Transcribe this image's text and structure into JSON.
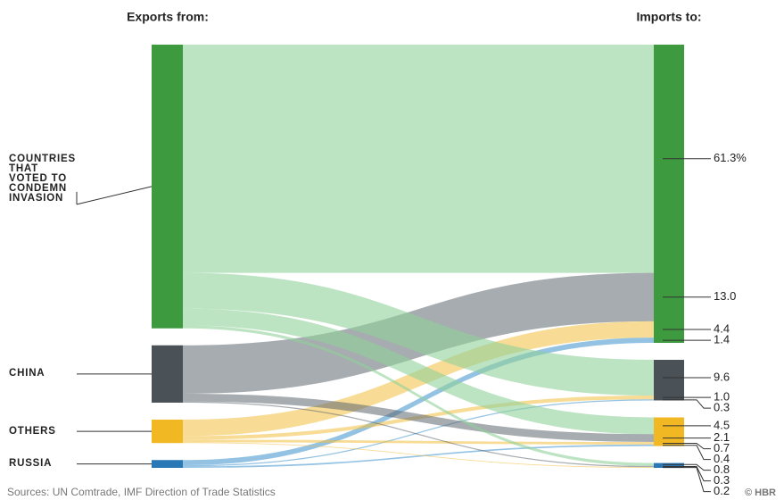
{
  "chart_data": {
    "type": "sankey",
    "left_header": "Exports from:",
    "right_header": "Imports to:",
    "source_note": "Sources: UN Comtrade, IMF Direction of Trade Statistics",
    "credit": "© HBR",
    "nodes": [
      {
        "name": "COUNTRIES THAT VOTED TO CONDEMN INVASION",
        "color": "#3d9a3f",
        "flow_color": "#8fd09a"
      },
      {
        "name": "CHINA",
        "color": "#4a5257",
        "flow_color": "#5f6870"
      },
      {
        "name": "OTHERS",
        "color": "#f2b823",
        "flow_color": "#f2c040"
      },
      {
        "name": "RUSSIA",
        "color": "#2a78b5",
        "flow_color": "#3b8fcc"
      }
    ],
    "links": [
      {
        "source": 0,
        "target": 0,
        "value": 61.3,
        "value_label": "61.3%"
      },
      {
        "source": 1,
        "target": 0,
        "value": 13.0,
        "value_label": "13.0"
      },
      {
        "source": 2,
        "target": 0,
        "value": 4.4,
        "value_label": "4.4"
      },
      {
        "source": 3,
        "target": 0,
        "value": 1.4,
        "value_label": "1.4"
      },
      {
        "source": 0,
        "target": 1,
        "value": 9.6,
        "value_label": "9.6"
      },
      {
        "source": 2,
        "target": 1,
        "value": 1.0,
        "value_label": "1.0"
      },
      {
        "source": 3,
        "target": 1,
        "value": 0.3,
        "value_label": "0.3"
      },
      {
        "source": 0,
        "target": 2,
        "value": 4.5,
        "value_label": "4.5"
      },
      {
        "source": 1,
        "target": 2,
        "value": 2.1,
        "value_label": "2.1"
      },
      {
        "source": 2,
        "target": 2,
        "value": 0.7,
        "value_label": "0.7"
      },
      {
        "source": 3,
        "target": 2,
        "value": 0.4,
        "value_label": "0.4"
      },
      {
        "source": 0,
        "target": 3,
        "value": 0.8,
        "value_label": "0.8"
      },
      {
        "source": 1,
        "target": 3,
        "value": 0.3,
        "value_label": "0.3"
      },
      {
        "source": 2,
        "target": 3,
        "value": 0.2,
        "value_label": "0.2"
      }
    ]
  }
}
